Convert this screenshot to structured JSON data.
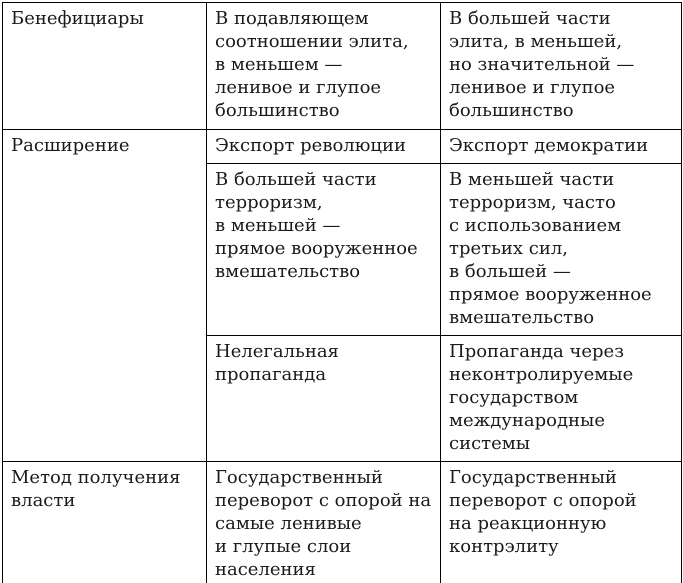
{
  "page": {
    "background": "#ffffff"
  },
  "table": {
    "border_color": "#000000",
    "text_color": "#1a1a1a",
    "columns": 3,
    "rows": [
      {
        "header": "Бенефициары",
        "cells": [
          [
            "В подавляющем\nсоотношении элита,\nв меньшем —\nленивое и глупое\nбольшинство",
            "В большей части\nэлита, в меньшей,\nно значительной —\nленивое и глупое\nбольшинство"
          ]
        ]
      },
      {
        "header": "Расширение",
        "cells": [
          [
            "Экспорт революции",
            "Экспорт демократии"
          ],
          [
            "В большей части\nтерроризм,\nв меньшей —\nпрямое вооруженное\nвмешательство",
            "В меньшей части\nтерроризм, часто\nс использованием\nтретьих сил,\nв большей —\nпрямое вооруженное\nвмешательство"
          ],
          [
            "Нелегальная\nпропаганда",
            "Пропаганда через\nнеконтролируемые\nгосударством\nмеждународные\nсистемы"
          ]
        ]
      },
      {
        "header": "Метод получения\nвласти",
        "cells": [
          [
            "Государственный\nпереворот с опорой на\nсамые ленивые\nи глупые слои\nнаселения",
            "Государственный\nпереворот с опорой\nна реакционную\nконтрэлиту"
          ]
        ]
      }
    ]
  }
}
